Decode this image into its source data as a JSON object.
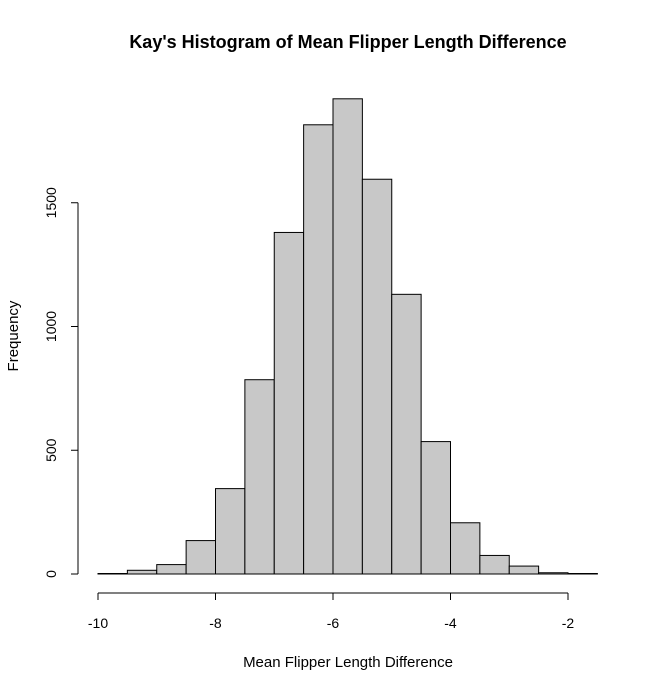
{
  "chart_data": {
    "type": "bar",
    "title": "Kay's Histogram of Mean Flipper Length Difference",
    "xlabel": "Mean Flipper Length Difference",
    "ylabel": "Frequency",
    "bin_edges": [
      -10,
      -9.5,
      -9,
      -8.5,
      -8,
      -7.5,
      -7,
      -6.5,
      -6,
      -5.5,
      -5,
      -4.5,
      -4,
      -3.5,
      -3,
      -2.5,
      -2,
      -1.5
    ],
    "values": [
      2,
      15,
      38,
      135,
      345,
      785,
      1380,
      1815,
      1920,
      1595,
      1130,
      535,
      207,
      75,
      32,
      5,
      2
    ],
    "xlim": [
      -10,
      -1.5
    ],
    "ylim": [
      0,
      1920
    ],
    "x_ticks": [
      -10,
      -8,
      -6,
      -4,
      -2
    ],
    "y_ticks": [
      0,
      500,
      1000,
      1500
    ],
    "x_tick_labels": [
      "-10",
      "-8",
      "-6",
      "-4",
      "-2"
    ],
    "y_tick_labels": [
      "0",
      "500",
      "1000",
      "1500"
    ],
    "bar_color": "#c8c8c8",
    "edge_color": "#000000",
    "grid": false
  }
}
